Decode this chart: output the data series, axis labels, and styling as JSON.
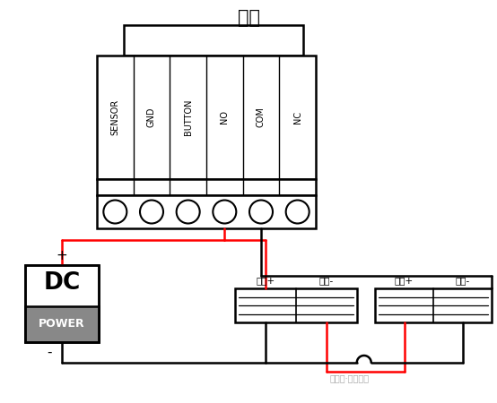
{
  "title": "门锁",
  "connector_labels": [
    "SENSOR",
    "GND",
    "BUTTON",
    "NO",
    "COM",
    "NC"
  ],
  "power_labels": [
    "电源+",
    "电源-",
    "电源+",
    "电源-"
  ],
  "dc_label_top": "DC",
  "dc_label_bottom": "POWER",
  "plus_sign": "+",
  "minus_sign": "-",
  "watermark": "公众号·安防之尊",
  "bg_color": "#ffffff",
  "black": "#000000",
  "red": "#ff0000",
  "gray": "#888888"
}
